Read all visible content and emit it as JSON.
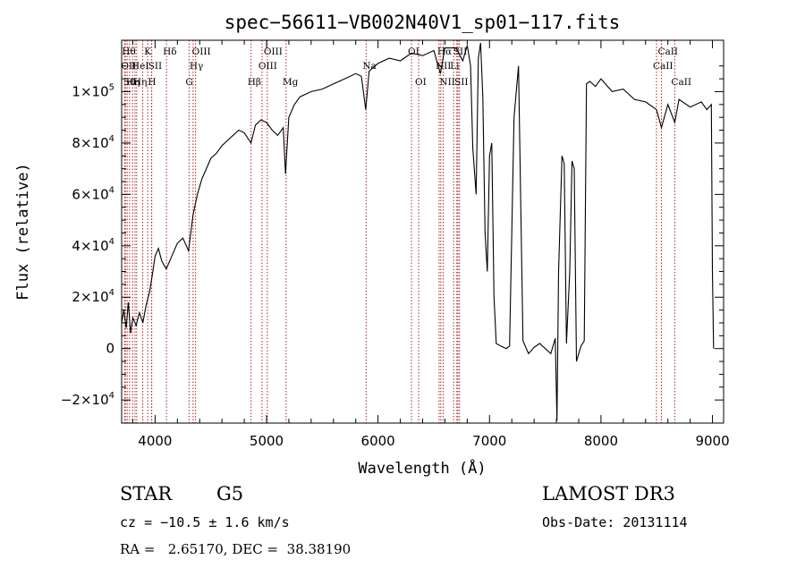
{
  "chart_data": {
    "type": "line",
    "title": "spec−56611−VB002N40V1_sp01−117.fits",
    "xlabel": "Wavelength (Å)",
    "ylabel": "Flux (relative)",
    "xlim": [
      3700,
      9100
    ],
    "ylim": [
      -29000,
      120000
    ],
    "x_ticks": [
      {
        "value": 4000,
        "label": "4000"
      },
      {
        "value": 5000,
        "label": "5000"
      },
      {
        "value": 6000,
        "label": "6000"
      },
      {
        "value": 7000,
        "label": "7000"
      },
      {
        "value": 8000,
        "label": "8000"
      },
      {
        "value": 9000,
        "label": "9000"
      }
    ],
    "y_ticks": [
      {
        "value": -20000,
        "mant": "−2×10",
        "exp": "4"
      },
      {
        "value": 0,
        "mant": "0",
        "exp": ""
      },
      {
        "value": 20000,
        "mant": "2×10",
        "exp": "4"
      },
      {
        "value": 40000,
        "mant": "4×10",
        "exp": "4"
      },
      {
        "value": 60000,
        "mant": "6×10",
        "exp": "4"
      },
      {
        "value": 80000,
        "mant": "8×10",
        "exp": "4"
      },
      {
        "value": 100000,
        "mant": "1×10",
        "exp": "5"
      }
    ],
    "series": [
      {
        "points": [
          [
            3700,
            10000
          ],
          [
            3720,
            15000
          ],
          [
            3740,
            8000
          ],
          [
            3760,
            18000
          ],
          [
            3780,
            6000
          ],
          [
            3800,
            12000
          ],
          [
            3830,
            9000
          ],
          [
            3860,
            14000
          ],
          [
            3890,
            10000
          ],
          [
            3920,
            17000
          ],
          [
            3950,
            22000
          ],
          [
            3980,
            30000
          ],
          [
            4000,
            36000
          ],
          [
            4030,
            39000
          ],
          [
            4060,
            34000
          ],
          [
            4100,
            31000
          ],
          [
            4150,
            36000
          ],
          [
            4200,
            41000
          ],
          [
            4250,
            43000
          ],
          [
            4300,
            38000
          ],
          [
            4340,
            52000
          ],
          [
            4380,
            60000
          ],
          [
            4420,
            66000
          ],
          [
            4460,
            70000
          ],
          [
            4500,
            74000
          ],
          [
            4550,
            76000
          ],
          [
            4600,
            79000
          ],
          [
            4650,
            81000
          ],
          [
            4700,
            83000
          ],
          [
            4750,
            85000
          ],
          [
            4800,
            84000
          ],
          [
            4860,
            80000
          ],
          [
            4900,
            87000
          ],
          [
            4950,
            89000
          ],
          [
            5000,
            88000
          ],
          [
            5050,
            85000
          ],
          [
            5100,
            83000
          ],
          [
            5150,
            86000
          ],
          [
            5170,
            68000
          ],
          [
            5200,
            90000
          ],
          [
            5250,
            95000
          ],
          [
            5300,
            98000
          ],
          [
            5400,
            100000
          ],
          [
            5500,
            101000
          ],
          [
            5600,
            103000
          ],
          [
            5700,
            105000
          ],
          [
            5800,
            107000
          ],
          [
            5850,
            106000
          ],
          [
            5890,
            93000
          ],
          [
            5920,
            108000
          ],
          [
            6000,
            111000
          ],
          [
            6100,
            113000
          ],
          [
            6200,
            112000
          ],
          [
            6300,
            115000
          ],
          [
            6400,
            114000
          ],
          [
            6500,
            116000
          ],
          [
            6560,
            107000
          ],
          [
            6600,
            117000
          ],
          [
            6700,
            117000
          ],
          [
            6760,
            112000
          ],
          [
            6800,
            118000
          ],
          [
            6830,
            110000
          ],
          [
            6850,
            78000
          ],
          [
            6880,
            60000
          ],
          [
            6900,
            113000
          ],
          [
            6920,
            119000
          ],
          [
            6940,
            98000
          ],
          [
            6960,
            45000
          ],
          [
            6980,
            30000
          ],
          [
            7000,
            75000
          ],
          [
            7020,
            80000
          ],
          [
            7040,
            20000
          ],
          [
            7060,
            2000
          ],
          [
            7100,
            1000
          ],
          [
            7150,
            0
          ],
          [
            7180,
            1000
          ],
          [
            7220,
            90000
          ],
          [
            7260,
            110000
          ],
          [
            7300,
            3000
          ],
          [
            7350,
            -2000
          ],
          [
            7400,
            500
          ],
          [
            7450,
            2000
          ],
          [
            7500,
            0
          ],
          [
            7550,
            -2000
          ],
          [
            7590,
            4000
          ],
          [
            7605,
            -28000
          ],
          [
            7620,
            30000
          ],
          [
            7650,
            75000
          ],
          [
            7670,
            72000
          ],
          [
            7690,
            2000
          ],
          [
            7720,
            30000
          ],
          [
            7740,
            73000
          ],
          [
            7760,
            70000
          ],
          [
            7780,
            -5000
          ],
          [
            7820,
            1000
          ],
          [
            7850,
            3000
          ],
          [
            7870,
            103000
          ],
          [
            7900,
            104000
          ],
          [
            7950,
            102000
          ],
          [
            8000,
            105000
          ],
          [
            8100,
            100000
          ],
          [
            8200,
            101000
          ],
          [
            8300,
            97000
          ],
          [
            8400,
            96000
          ],
          [
            8498,
            93000
          ],
          [
            8542,
            86000
          ],
          [
            8600,
            95000
          ],
          [
            8662,
            88000
          ],
          [
            8700,
            97000
          ],
          [
            8800,
            94000
          ],
          [
            8900,
            96000
          ],
          [
            8950,
            93000
          ],
          [
            8990,
            95000
          ],
          [
            9000,
            30000
          ],
          [
            9010,
            0
          ]
        ]
      }
    ],
    "line_markers": [
      {
        "w": 3734,
        "label": "Hθ",
        "row": 1
      },
      {
        "w": 3727,
        "label": "OII",
        "row": 2
      },
      {
        "w": 3750,
        "label": "50",
        "row": 3
      },
      {
        "w": 3771,
        "label": "Hη",
        "row": 3
      },
      {
        "w": 3798,
        "label": "",
        "row": 0
      },
      {
        "w": 3820,
        "label": "HeI",
        "row": 2
      },
      {
        "w": 3835,
        "label": "Hη",
        "row": 3
      },
      {
        "w": 3889,
        "label": "",
        "row": 0
      },
      {
        "w": 3934,
        "label": "K",
        "row": 1
      },
      {
        "w": 3968,
        "label": "H",
        "row": 3
      },
      {
        "w": 3970,
        "label": "SII",
        "row": 2
      },
      {
        "w": 4102,
        "label": "Hδ",
        "row": 1
      },
      {
        "w": 4305,
        "label": "G",
        "row": 3
      },
      {
        "w": 4341,
        "label": "Hγ",
        "row": 2
      },
      {
        "w": 4363,
        "label": "OIII",
        "row": 1
      },
      {
        "w": 4861,
        "label": "Hβ",
        "row": 3
      },
      {
        "w": 4959,
        "label": "OIII",
        "row": 2
      },
      {
        "w": 5007,
        "label": "OIII",
        "row": 1
      },
      {
        "w": 5175,
        "label": "Mg",
        "row": 3
      },
      {
        "w": 5893,
        "label": "Na",
        "row": 2
      },
      {
        "w": 6300,
        "label": "OI",
        "row": 1
      },
      {
        "w": 6364,
        "label": "OI",
        "row": 3
      },
      {
        "w": 6548,
        "label": "NII",
        "row": 2
      },
      {
        "w": 6563,
        "label": "Hα",
        "row": 1
      },
      {
        "w": 6584,
        "label": "NII",
        "row": 3
      },
      {
        "w": 6678,
        "label": "Li",
        "row": 2
      },
      {
        "w": 6707,
        "label": "SII",
        "row": 1
      },
      {
        "w": 6717,
        "label": "SII",
        "row": 3
      },
      {
        "w": 6731,
        "label": "",
        "row": 0
      },
      {
        "w": 8498,
        "label": "CaII",
        "row": 2
      },
      {
        "w": 8542,
        "label": "CaII",
        "row": 1
      },
      {
        "w": 8662,
        "label": "CaII",
        "row": 3
      }
    ]
  },
  "info": {
    "class": "STAR",
    "subclass": "G5",
    "redshift": "cz = −10.5 ± 1.6 km/s",
    "radec": "RA =   2.65170, DEC =  38.38190",
    "survey": "LAMOST DR3",
    "obsdate": "Obs-Date: 20131114"
  }
}
